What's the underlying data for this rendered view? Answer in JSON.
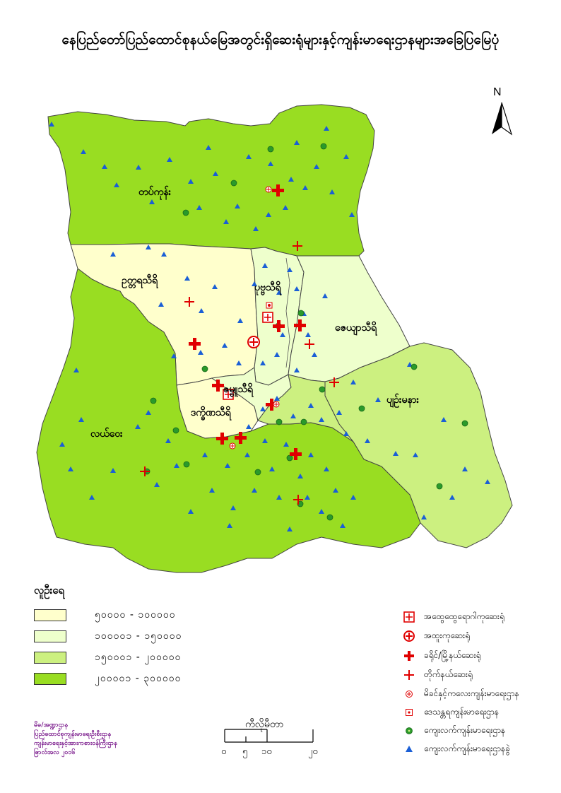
{
  "title": "နေပြည်တော်ပြည်ထောင်စုနယ်မြေအတွင်းရှိဆေးရုံများနှင့်ကျန်းမာရေးဌာနများအခြေပြမြေပုံ",
  "north": "N",
  "regions": {
    "tatkon": "တပ်ကုန်း",
    "uttara": "ဥတ္တရသီရိ",
    "pobba": "ပုဗ္ဗသီရိ",
    "zeya": "ဇေယျာသီရိ",
    "pyinmana": "ပျဉ်းမနား",
    "zabu": "ဇမ္ဗူသီရိ",
    "dekkhina": "ဒက္ခိဏသီရိ",
    "lewe": "လယ်ဝေး"
  },
  "legend": {
    "title": "လူဦးရေ",
    "ranges": [
      {
        "label": "၅၀၀၀၀ - ၁၀၀၀၀၀",
        "color": "#ffffcc"
      },
      {
        "label": "၁၀၀၀၀၁ - ၁၅၀၀၀၀",
        "color": "#eeffcc"
      },
      {
        "label": "၁၅၀၀၀၁ - ၂၀၀၀၀၀",
        "color": "#ccf080"
      },
      {
        "label": "၂၀၀၀၀၁ - ၃၀၀၀၀၀",
        "color": "#99dd22"
      }
    ]
  },
  "symbols": [
    {
      "label": "အထွေထွေရောဂါကုဆေးရုံ",
      "icon": "boxed-cross-icon"
    },
    {
      "label": "အထူးကုဆေးရုံ",
      "icon": "circled-cross-icon"
    },
    {
      "label": "ခရိုင်/မြို့နယ်ဆေးရုံ",
      "icon": "bold-cross-icon"
    },
    {
      "label": "တိုက်နယ်ဆေးရုံ",
      "icon": "thin-cross-icon"
    },
    {
      "label": "မိခင်နှင့်ကလေးကျန်းမာရေးဌာန",
      "icon": "small-circled-cross-icon"
    },
    {
      "label": "ဒေသန္တရကျန်းမာရေးဌာန",
      "icon": "small-boxed-dot-icon"
    },
    {
      "label": "ကျေးလက်ကျန်းမာရေးဌာန",
      "icon": "green-dot-circle-icon"
    },
    {
      "label": "ကျေးလက်ကျန်းမာရေးဌာနခွဲ",
      "icon": "blue-triangle-icon"
    }
  ],
  "credit": [
    "မိခ/အဏ္ဍာဌာန",
    "ပြည်ထောင်စုကျန်းမာရေးဦးစီးဌာန",
    "ကျန်းမာရေးနှင့်အားကစားဝန်ကြီးဌာန",
    "ဇြာလ်အလ ၂၀၁၆"
  ],
  "scale": {
    "label": "ကီလိုမီတာ",
    "ticks": [
      "၀",
      "၅",
      "၁၀",
      "၂၀"
    ]
  },
  "colors": {
    "general_green": "#99dd22",
    "light_yellow": "#ffffcc",
    "pale_green": "#eeffcc",
    "mid_green": "#ccf080",
    "hospital_red": "#e00000",
    "sub_center_blue": "#1a5fd6",
    "rural_center_green": "#2a9a2a"
  }
}
